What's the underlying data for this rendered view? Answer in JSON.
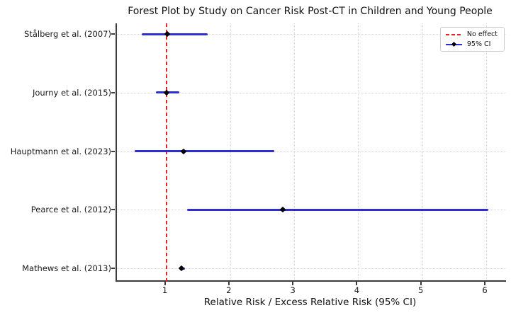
{
  "title": "Forest Plot by Study on Cancer Risk Post-CT in Children and Young People",
  "xlabel": "Relative Risk / Excess Relative Risk (95% CI)",
  "legend": {
    "no_effect_label": "No effect",
    "ci_label": "95% CI"
  },
  "colors": {
    "ci_line": "#2e2ecf",
    "marker": "#000000",
    "no_effect_line": "#e62222",
    "grid": "#d9d9d9",
    "spine": "#3c3c3c"
  },
  "chart_data": {
    "type": "forest",
    "title": "Forest Plot by Study on Cancer Risk Post-CT in Children and Young People",
    "xlabel": "Relative Risk / Excess Relative Risk (95% CI)",
    "ylabel": "",
    "xlim": [
      0.23,
      6.31
    ],
    "xticks": [
      1,
      2,
      3,
      4,
      5,
      6
    ],
    "no_effect_x": 1.0,
    "grid": true,
    "marker_shape": "diamond",
    "legend_position": "upper right",
    "studies": [
      {
        "label": "Stålberg et al. (2007)",
        "point": 1.02,
        "ci_low": 0.62,
        "ci_high": 1.65
      },
      {
        "label": "Journy et al. (2015)",
        "point": 1.0,
        "ci_low": 0.84,
        "ci_high": 1.21
      },
      {
        "label": "Hauptmann et al. (2023)",
        "point": 1.27,
        "ci_low": 0.51,
        "ci_high": 2.69
      },
      {
        "label": "Pearce et al. (2012)",
        "point": 2.82,
        "ci_low": 1.33,
        "ci_high": 6.03
      },
      {
        "label": "Mathews et al. (2013)",
        "point": 1.24,
        "ci_low": 1.2,
        "ci_high": 1.29
      }
    ]
  }
}
